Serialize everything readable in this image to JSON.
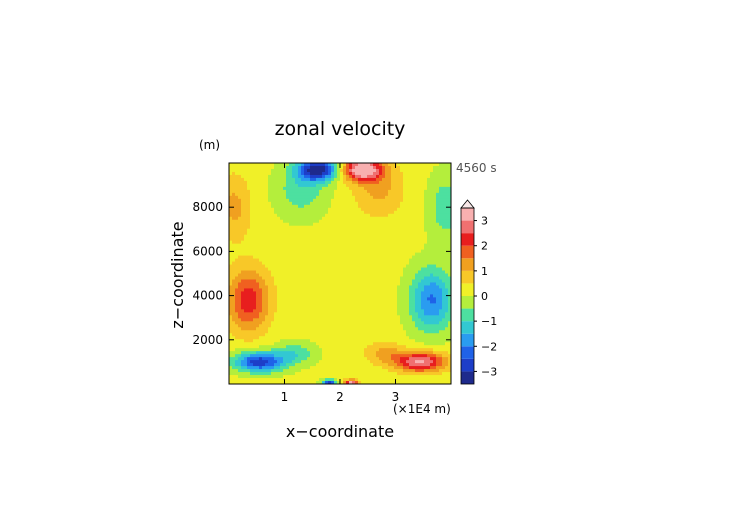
{
  "chart_data": {
    "type": "heatmap",
    "title": "zonal velocity",
    "xlabel": "x−coordinate",
    "ylabel": "z−coordinate",
    "y_unit": "(m)",
    "x_unit": "(×1E4 m)",
    "time_label": "4560 s",
    "xlim": [
      0,
      4
    ],
    "ylim": [
      0,
      10000
    ],
    "x_ticks": [
      1,
      2,
      3
    ],
    "x_tick_labels": [
      "1",
      "2",
      "3"
    ],
    "y_ticks": [
      2000,
      4000,
      6000,
      8000
    ],
    "y_tick_labels": [
      "2000",
      "4000",
      "6000",
      "8000"
    ],
    "colorbar": {
      "levels": [
        -3.5,
        -3,
        -2.5,
        -2,
        -1.5,
        -1,
        -0.5,
        0,
        0.5,
        1,
        1.5,
        2,
        2.5,
        3,
        3.5
      ],
      "tick_values": [
        -3,
        -2,
        -1,
        0,
        1,
        2,
        3
      ],
      "tick_labels": [
        "−3",
        "−2",
        "−1",
        "0",
        "1",
        "2",
        "3"
      ],
      "colors": [
        "#1e2a8c",
        "#1d3ec8",
        "#1f62e8",
        "#2a9cf0",
        "#32c8d2",
        "#4de0a0",
        "#b4ee3c",
        "#f0f028",
        "#f8c828",
        "#f0a020",
        "#f06020",
        "#e81e1e",
        "#f07070",
        "#f8b0b0"
      ],
      "extend_top": true
    },
    "features": [
      {
        "x": 1.6,
        "z": 9700,
        "value": -3.5,
        "sx": 0.35,
        "sz": 500
      },
      {
        "x": 1.3,
        "z": 8800,
        "value": -1.0,
        "sx": 0.45,
        "sz": 1200
      },
      {
        "x": 2.4,
        "z": 9700,
        "value": 3.5,
        "sx": 0.35,
        "sz": 500
      },
      {
        "x": 2.7,
        "z": 8800,
        "value": 1.0,
        "sx": 0.45,
        "sz": 1200
      },
      {
        "x": 0.35,
        "z": 3800,
        "value": 2.2,
        "sx": 0.38,
        "sz": 1400
      },
      {
        "x": 3.65,
        "z": 3800,
        "value": -2.2,
        "sx": 0.38,
        "sz": 1400
      },
      {
        "x": 0.55,
        "z": 1000,
        "value": -3.0,
        "sx": 0.45,
        "sz": 450
      },
      {
        "x": 3.45,
        "z": 1000,
        "value": 3.0,
        "sx": 0.45,
        "sz": 450
      },
      {
        "x": 1.2,
        "z": 1400,
        "value": -1.0,
        "sx": 0.35,
        "sz": 500
      },
      {
        "x": 2.8,
        "z": 1400,
        "value": 1.0,
        "sx": 0.35,
        "sz": 500
      },
      {
        "x": 1.8,
        "z": 50,
        "value": -3.0,
        "sx": 0.12,
        "sz": 150
      },
      {
        "x": 2.2,
        "z": 50,
        "value": 3.0,
        "sx": 0.12,
        "sz": 150
      },
      {
        "x": 0.1,
        "z": 8000,
        "value": 1.0,
        "sx": 0.3,
        "sz": 1500
      },
      {
        "x": 3.9,
        "z": 8000,
        "value": -1.0,
        "sx": 0.3,
        "sz": 1500
      }
    ]
  }
}
